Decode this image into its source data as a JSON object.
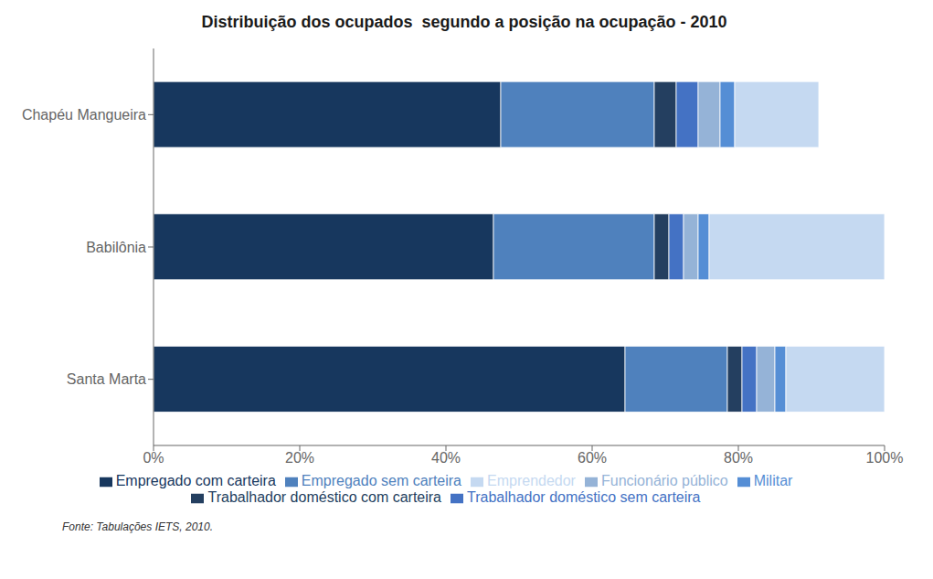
{
  "chart_data": {
    "type": "bar",
    "orientation": "horizontal",
    "stacked": true,
    "title": "Distribuição dos ocupados  segundo a posição na ocupação - 2010",
    "categories": [
      "Chapéu Mangueira",
      "Babilônia",
      "Santa Marta"
    ],
    "series": [
      {
        "name": "Empregado com carteira",
        "color": "#17375E",
        "values": [
          47.5,
          46.5,
          64.5
        ]
      },
      {
        "name": "Empregado sem carteira",
        "color": "#4F81BD",
        "values": [
          21.0,
          22.0,
          14.0
        ]
      },
      {
        "name": "Trabalhador doméstico com carteira",
        "color": "#243F60",
        "values": [
          3.0,
          2.0,
          2.0
        ]
      },
      {
        "name": "Trabalhador doméstico sem carteira",
        "color": "#4472C4",
        "values": [
          3.0,
          2.0,
          2.0
        ]
      },
      {
        "name": "Funcionário público",
        "color": "#95B3D7",
        "values": [
          3.0,
          2.0,
          2.5
        ]
      },
      {
        "name": "Militar",
        "color": "#558ED5",
        "values": [
          2.0,
          1.5,
          1.5
        ]
      },
      {
        "name": "Emprendedor",
        "color": "#C5D9F1",
        "values": [
          11.5,
          24.0,
          13.5
        ]
      }
    ],
    "xlim": [
      0,
      100
    ],
    "xticks": [
      {
        "value": 0,
        "label": "0%"
      },
      {
        "value": 20,
        "label": "20%"
      },
      {
        "value": 40,
        "label": "40%"
      },
      {
        "value": 60,
        "label": "60%"
      },
      {
        "value": 80,
        "label": "80%"
      },
      {
        "value": 100,
        "label": "100%"
      }
    ],
    "grid": false,
    "legend": "bottom",
    "annotations": [
      "Fonte: Tabulações IETS, 2010."
    ]
  }
}
